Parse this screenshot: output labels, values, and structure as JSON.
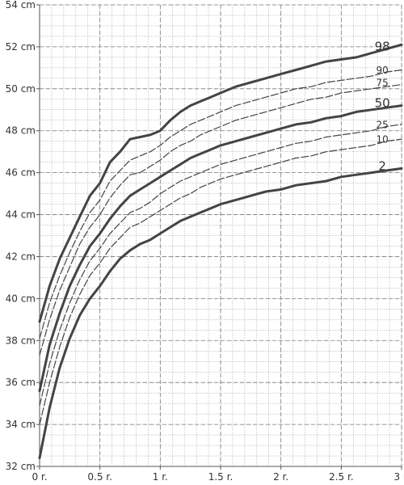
{
  "chart_data": {
    "type": "line",
    "xlim": [
      0,
      3
    ],
    "ylim": [
      32,
      54
    ],
    "x_ticks": [
      {
        "value": 0,
        "label": "0 r."
      },
      {
        "value": 0.5,
        "label": "0.5 r."
      },
      {
        "value": 1,
        "label": "1 r."
      },
      {
        "value": 1.5,
        "label": "1.5 r."
      },
      {
        "value": 2,
        "label": "2 r."
      },
      {
        "value": 2.5,
        "label": "2.5 r."
      },
      {
        "value": 3,
        "label": "3 r."
      }
    ],
    "y_ticks": [
      {
        "value": 32,
        "label": "32 cm"
      },
      {
        "value": 34,
        "label": "34 cm"
      },
      {
        "value": 36,
        "label": "36 cm"
      },
      {
        "value": 38,
        "label": "38 cm"
      },
      {
        "value": 40,
        "label": "40 cm"
      },
      {
        "value": 42,
        "label": "42 cm"
      },
      {
        "value": 44,
        "label": "44 cm"
      },
      {
        "value": 46,
        "label": "46 cm"
      },
      {
        "value": 48,
        "label": "48 cm"
      },
      {
        "value": 50,
        "label": "50 cm"
      },
      {
        "value": 52,
        "label": "52 cm"
      },
      {
        "value": 54,
        "label": "54 cm"
      }
    ],
    "grid": true,
    "x": [
      0,
      0.083,
      0.167,
      0.25,
      0.333,
      0.417,
      0.5,
      0.583,
      0.667,
      0.75,
      0.833,
      0.917,
      1,
      1.083,
      1.167,
      1.25,
      1.333,
      1.417,
      1.5,
      1.625,
      1.75,
      1.875,
      2,
      2.125,
      2.25,
      2.375,
      2.5,
      2.625,
      2.75,
      2.875,
      3
    ],
    "colors": {
      "line": "#444444",
      "grid": "#9a9a9a",
      "axis": "#555555"
    },
    "series": [
      {
        "label": "98",
        "style": "bold",
        "values": [
          38.9,
          40.6,
          41.9,
          42.9,
          43.9,
          44.9,
          45.5,
          46.5,
          47.0,
          47.6,
          47.7,
          47.8,
          48.0,
          48.5,
          48.9,
          49.2,
          49.4,
          49.6,
          49.8,
          50.1,
          50.3,
          50.5,
          50.7,
          50.9,
          51.1,
          51.3,
          51.4,
          51.5,
          51.7,
          51.9,
          52.1
        ]
      },
      {
        "label": "90",
        "style": "thin",
        "values": [
          38.1,
          39.8,
          41.1,
          42.2,
          43.2,
          44.1,
          44.7,
          45.6,
          46.1,
          46.6,
          46.8,
          47.0,
          47.3,
          47.7,
          48.0,
          48.3,
          48.5,
          48.7,
          48.9,
          49.2,
          49.4,
          49.6,
          49.8,
          50.0,
          50.1,
          50.3,
          50.4,
          50.5,
          50.6,
          50.8,
          50.9
        ]
      },
      {
        "label": "75",
        "style": "thin",
        "values": [
          37.3,
          39.0,
          40.4,
          41.5,
          42.6,
          43.4,
          44.0,
          44.8,
          45.4,
          45.9,
          46.0,
          46.3,
          46.6,
          47.0,
          47.3,
          47.5,
          47.8,
          48.0,
          48.2,
          48.5,
          48.7,
          48.9,
          49.1,
          49.3,
          49.5,
          49.6,
          49.8,
          49.9,
          50.0,
          50.1,
          50.2
        ]
      },
      {
        "label": "50",
        "style": "bold",
        "values": [
          35.6,
          37.8,
          39.3,
          40.6,
          41.6,
          42.5,
          43.1,
          43.8,
          44.4,
          44.9,
          45.2,
          45.5,
          45.8,
          46.1,
          46.4,
          46.7,
          46.9,
          47.1,
          47.3,
          47.5,
          47.7,
          47.9,
          48.1,
          48.3,
          48.4,
          48.6,
          48.7,
          48.9,
          49.0,
          49.1,
          49.2
        ]
      },
      {
        "label": "25",
        "style": "thin",
        "values": [
          34.9,
          36.9,
          38.5,
          39.8,
          40.9,
          41.8,
          42.4,
          43.1,
          43.6,
          44.1,
          44.3,
          44.6,
          45.0,
          45.3,
          45.6,
          45.8,
          46.0,
          46.2,
          46.4,
          46.6,
          46.8,
          47.0,
          47.2,
          47.4,
          47.5,
          47.7,
          47.8,
          47.9,
          48.0,
          48.2,
          48.3
        ]
      },
      {
        "label": "10",
        "style": "thin",
        "values": [
          34.0,
          36.0,
          37.7,
          39.1,
          40.2,
          41.1,
          41.7,
          42.4,
          42.9,
          43.4,
          43.6,
          43.9,
          44.2,
          44.5,
          44.8,
          45.0,
          45.3,
          45.5,
          45.7,
          45.9,
          46.1,
          46.3,
          46.5,
          46.7,
          46.8,
          47.0,
          47.1,
          47.2,
          47.3,
          47.5,
          47.6
        ]
      },
      {
        "label": "2",
        "style": "bold",
        "values": [
          32.4,
          34.8,
          36.7,
          38.1,
          39.2,
          40.0,
          40.6,
          41.3,
          41.9,
          42.3,
          42.6,
          42.8,
          43.1,
          43.4,
          43.7,
          43.9,
          44.1,
          44.3,
          44.5,
          44.7,
          44.9,
          45.1,
          45.2,
          45.4,
          45.5,
          45.6,
          45.8,
          45.9,
          46.0,
          46.1,
          46.2
        ]
      }
    ]
  }
}
